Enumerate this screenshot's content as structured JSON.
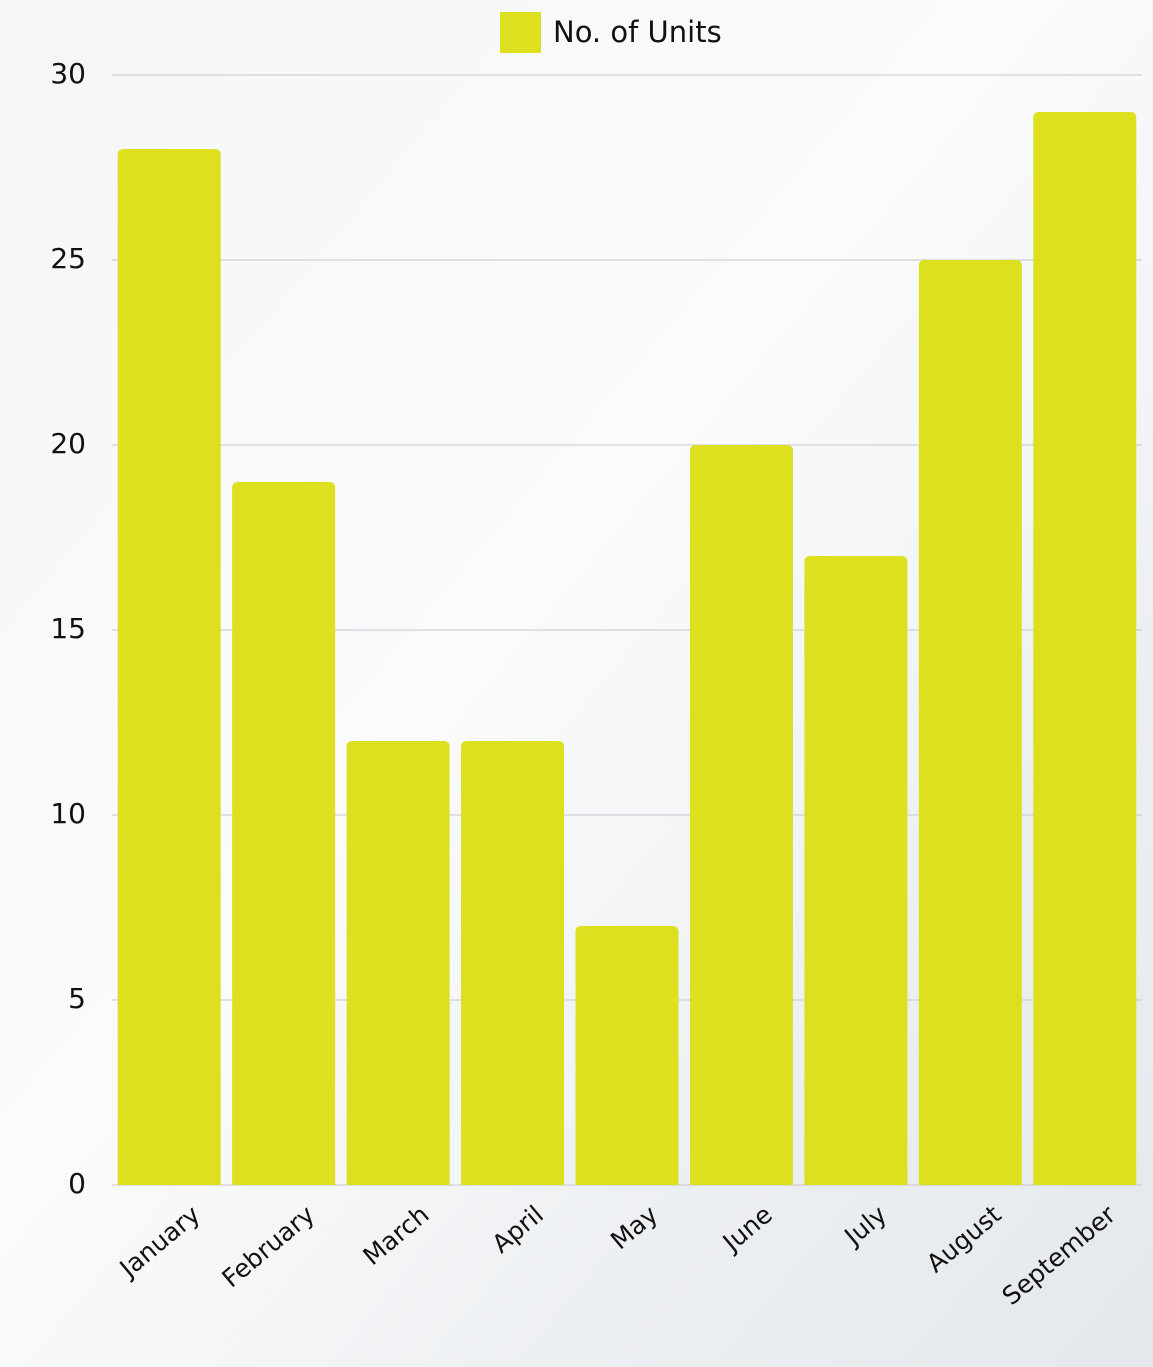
{
  "chart_data": {
    "type": "bar",
    "categories": [
      "January",
      "February",
      "March",
      "April",
      "May",
      "June",
      "July",
      "August",
      "September"
    ],
    "series": [
      {
        "name": "No. of Units",
        "color": "#dde01f",
        "values": [
          28,
          19,
          12,
          12,
          7,
          20,
          17,
          25,
          29
        ]
      }
    ],
    "ylim": [
      0,
      30
    ],
    "yticks": [
      0,
      5,
      10,
      15,
      20,
      25,
      30
    ],
    "grid": true,
    "legend": "top"
  }
}
